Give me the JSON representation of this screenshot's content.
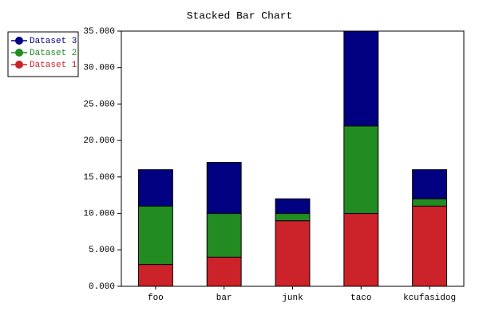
{
  "chart_data": {
    "type": "stacked_bar",
    "title": "Stacked Bar Chart",
    "categories": [
      "foo",
      "bar",
      "junk",
      "taco",
      "kcufasidog"
    ],
    "series": [
      {
        "name": "Dataset 1",
        "color": "#cc2229",
        "values": [
          3,
          4,
          9,
          10,
          11
        ]
      },
      {
        "name": "Dataset 2",
        "color": "#228b22",
        "values": [
          8,
          6,
          1,
          12,
          1
        ]
      },
      {
        "name": "Dataset 3",
        "color": "#000080",
        "values": [
          5,
          7,
          2,
          13,
          4
        ]
      }
    ],
    "ylim": [
      0,
      35
    ],
    "yticks": [
      {
        "value": 0,
        "label": "0.000"
      },
      {
        "value": 5,
        "label": "5.000"
      },
      {
        "value": 10,
        "label": "10.000"
      },
      {
        "value": 15,
        "label": "15.000"
      },
      {
        "value": 20,
        "label": "20.000"
      },
      {
        "value": 25,
        "label": "25.000"
      },
      {
        "value": 30,
        "label": "30.000"
      },
      {
        "value": 35,
        "label": "35.000"
      }
    ],
    "legend": "top-left"
  }
}
